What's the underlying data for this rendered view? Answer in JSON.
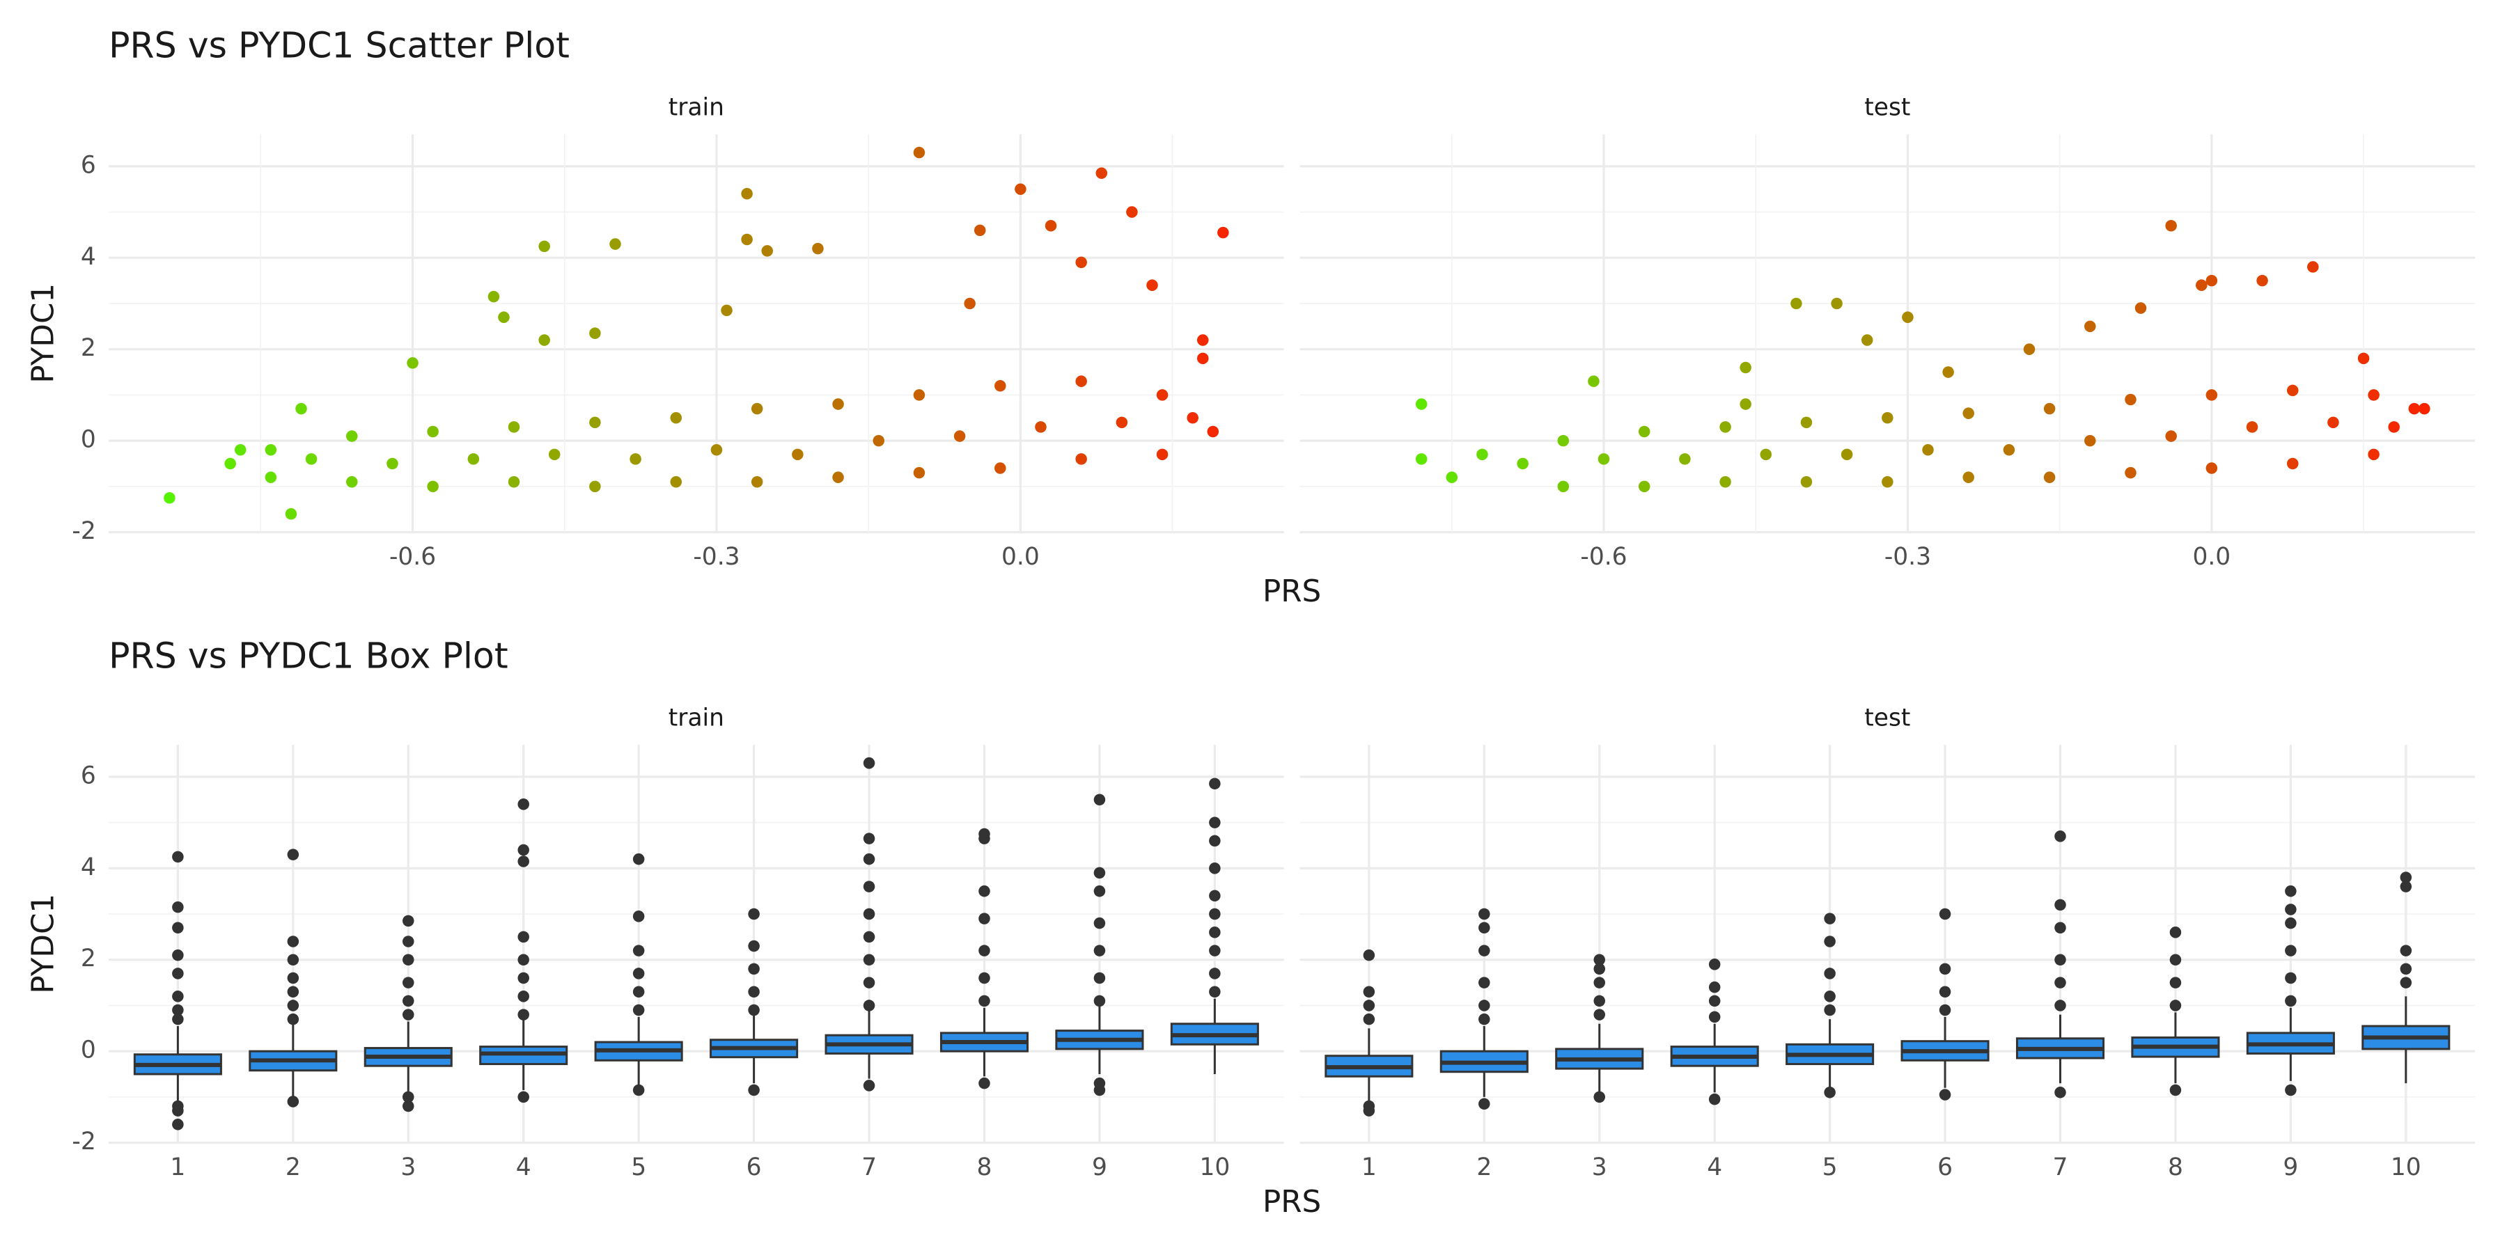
{
  "chart_data": [
    {
      "type": "scatter",
      "title": "PRS vs PYDC1 Scatter Plot",
      "x_label": "PRS",
      "y_label": "PYDC1",
      "xlim": [
        -0.9,
        0.26
      ],
      "xticks": [
        -0.6,
        -0.3,
        {
          "value": 0,
          "label": "0.0"
        }
      ],
      "ylim": [
        -2,
        6.7
      ],
      "yticks": [
        -2,
        0,
        2,
        4,
        6
      ],
      "grid": true,
      "color_low": "#4cff00",
      "color_high": "#ff1a00",
      "panels": [
        {
          "name": "train",
          "x": [
            -0.84,
            -0.77,
            -0.72,
            -0.71,
            -0.6,
            -0.52,
            -0.51,
            -0.47,
            -0.47,
            -0.4,
            -0.42,
            -0.29,
            -0.27,
            -0.27,
            -0.25,
            -0.2,
            -0.1,
            -0.04,
            -0.05,
            0.0,
            0.08,
            0.11,
            0.2,
            0.13,
            0.18,
            0.06,
            0.03,
            0.18,
            -0.78,
            -0.74,
            -0.74,
            -0.7,
            -0.66,
            -0.66,
            -0.62,
            -0.58,
            -0.58,
            -0.54,
            -0.5,
            -0.5,
            -0.46,
            -0.42,
            -0.42,
            -0.38,
            -0.34,
            -0.34,
            -0.3,
            -0.26,
            -0.26,
            -0.22,
            -0.18,
            -0.18,
            -0.14,
            -0.1,
            -0.1,
            -0.06,
            -0.02,
            -0.02,
            0.02,
            0.06,
            0.06,
            0.1,
            0.14,
            0.14,
            0.17,
            0.19
          ],
          "y": [
            -1.25,
            -0.2,
            -1.6,
            0.7,
            1.7,
            3.15,
            2.7,
            4.25,
            2.2,
            4.3,
            2.35,
            2.85,
            5.4,
            4.4,
            4.15,
            4.2,
            6.3,
            4.6,
            3.0,
            5.5,
            5.85,
            5.0,
            4.55,
            3.4,
            2.2,
            3.9,
            4.7,
            1.8,
            -0.5,
            -0.2,
            -0.8,
            -0.4,
            0.1,
            -0.9,
            -0.5,
            0.2,
            -1.0,
            -0.4,
            0.3,
            -0.9,
            -0.3,
            0.4,
            -1.0,
            -0.4,
            0.5,
            -0.9,
            -0.2,
            0.7,
            -0.9,
            -0.3,
            0.8,
            -0.8,
            0.0,
            1.0,
            -0.7,
            0.1,
            1.2,
            -0.6,
            0.3,
            1.3,
            -0.4,
            0.4,
            1.0,
            -0.3,
            0.5,
            0.2
          ]
        },
        {
          "name": "test",
          "x": [
            -0.78,
            -0.61,
            -0.46,
            -0.46,
            -0.41,
            -0.37,
            -0.34,
            -0.3,
            -0.26,
            -0.18,
            -0.12,
            -0.07,
            -0.04,
            -0.01,
            0.0,
            0.05,
            0.1,
            0.15,
            0.2,
            0.21,
            0.18,
            -0.78,
            -0.75,
            -0.72,
            -0.68,
            -0.64,
            -0.64,
            -0.6,
            -0.56,
            -0.56,
            -0.52,
            -0.48,
            -0.48,
            -0.44,
            -0.4,
            -0.4,
            -0.36,
            -0.32,
            -0.32,
            -0.28,
            -0.24,
            -0.24,
            -0.2,
            -0.16,
            -0.16,
            -0.12,
            -0.08,
            -0.08,
            -0.04,
            0.0,
            0.0,
            0.04,
            0.08,
            0.08,
            0.12,
            0.16,
            0.16
          ],
          "y": [
            0.8,
            1.3,
            0.8,
            1.6,
            3.0,
            3.0,
            2.2,
            2.7,
            1.5,
            2.0,
            2.5,
            2.9,
            4.7,
            3.4,
            3.5,
            3.5,
            3.8,
            1.8,
            0.7,
            0.7,
            0.3,
            -0.4,
            -0.8,
            -0.3,
            -0.5,
            0.0,
            -1.0,
            -0.4,
            0.2,
            -1.0,
            -0.4,
            0.3,
            -0.9,
            -0.3,
            0.4,
            -0.9,
            -0.3,
            0.5,
            -0.9,
            -0.2,
            0.6,
            -0.8,
            -0.2,
            0.7,
            -0.8,
            0.0,
            0.9,
            -0.7,
            0.1,
            1.0,
            -0.6,
            0.3,
            1.1,
            -0.5,
            0.4,
            1.0,
            -0.3
          ]
        }
      ]
    },
    {
      "type": "box",
      "title": "PRS vs PYDC1 Box Plot",
      "x_label": "PRS",
      "y_label": "PYDC1",
      "categories": [
        "1",
        "2",
        "3",
        "4",
        "5",
        "6",
        "7",
        "8",
        "9",
        "10"
      ],
      "ylim": [
        -2,
        6.7
      ],
      "yticks": [
        -2,
        0,
        2,
        4,
        6
      ],
      "grid": true,
      "color": "#2b8de6",
      "line_color": "#333333",
      "panels": [
        {
          "name": "train",
          "boxes": [
            {
              "q1": -0.5,
              "median": -0.3,
              "q3": -0.07,
              "whisker_low": -1.1,
              "whisker_high": 0.55,
              "outliers": [
                -1.6,
                -1.3,
                -1.2,
                0.7,
                0.9,
                1.2,
                1.7,
                2.1,
                2.7,
                3.15,
                4.25
              ]
            },
            {
              "q1": -0.42,
              "median": -0.2,
              "q3": 0.0,
              "whisker_low": -1.0,
              "whisker_high": 0.6,
              "outliers": [
                -1.1,
                0.7,
                1.0,
                1.3,
                1.6,
                2.0,
                2.4,
                4.3
              ]
            },
            {
              "q1": -0.32,
              "median": -0.12,
              "q3": 0.07,
              "whisker_low": -0.9,
              "whisker_high": 0.65,
              "outliers": [
                -1.2,
                -1.0,
                0.8,
                1.1,
                1.5,
                2.0,
                2.4,
                2.85
              ]
            },
            {
              "q1": -0.28,
              "median": -0.05,
              "q3": 0.1,
              "whisker_low": -0.85,
              "whisker_high": 0.7,
              "outliers": [
                -1.0,
                0.8,
                1.2,
                1.6,
                2.0,
                2.5,
                4.15,
                4.4,
                5.4
              ]
            },
            {
              "q1": -0.2,
              "median": 0.02,
              "q3": 0.2,
              "whisker_low": -0.8,
              "whisker_high": 0.75,
              "outliers": [
                -0.85,
                0.9,
                1.3,
                1.7,
                2.2,
                2.95,
                4.2
              ]
            },
            {
              "q1": -0.13,
              "median": 0.07,
              "q3": 0.25,
              "whisker_low": -0.7,
              "whisker_high": 0.8,
              "outliers": [
                -0.85,
                0.9,
                1.3,
                1.8,
                2.3,
                3.0
              ]
            },
            {
              "q1": -0.05,
              "median": 0.15,
              "q3": 0.35,
              "whisker_low": -0.6,
              "whisker_high": 0.9,
              "outliers": [
                -0.75,
                1.0,
                1.5,
                2.0,
                2.5,
                3.0,
                3.6,
                4.2,
                4.65,
                6.3
              ]
            },
            {
              "q1": 0.0,
              "median": 0.2,
              "q3": 0.4,
              "whisker_low": -0.55,
              "whisker_high": 0.95,
              "outliers": [
                -0.7,
                1.1,
                1.6,
                2.2,
                2.9,
                3.5,
                4.65,
                4.75
              ]
            },
            {
              "q1": 0.05,
              "median": 0.25,
              "q3": 0.45,
              "whisker_low": -0.5,
              "whisker_high": 1.0,
              "outliers": [
                -0.7,
                -0.85,
                1.1,
                1.6,
                2.2,
                2.8,
                3.5,
                3.9,
                5.5
              ]
            },
            {
              "q1": 0.15,
              "median": 0.35,
              "q3": 0.6,
              "whisker_low": -0.5,
              "whisker_high": 1.15,
              "outliers": [
                1.3,
                1.7,
                2.2,
                2.6,
                3.0,
                3.4,
                4.0,
                4.6,
                5.0,
                5.85
              ]
            }
          ]
        },
        {
          "name": "test",
          "boxes": [
            {
              "q1": -0.55,
              "median": -0.35,
              "q3": -0.1,
              "whisker_low": -1.1,
              "whisker_high": 0.5,
              "outliers": [
                -1.3,
                -1.2,
                0.7,
                1.0,
                1.3,
                2.1
              ]
            },
            {
              "q1": -0.45,
              "median": -0.25,
              "q3": 0.0,
              "whisker_low": -1.0,
              "whisker_high": 0.55,
              "outliers": [
                -1.15,
                0.7,
                1.0,
                1.5,
                2.2,
                2.7,
                3.0
              ]
            },
            {
              "q1": -0.38,
              "median": -0.18,
              "q3": 0.05,
              "whisker_low": -0.95,
              "whisker_high": 0.6,
              "outliers": [
                -1.0,
                0.8,
                1.1,
                1.5,
                1.8,
                2.0
              ]
            },
            {
              "q1": -0.32,
              "median": -0.12,
              "q3": 0.1,
              "whisker_low": -0.9,
              "whisker_high": 0.6,
              "outliers": [
                -1.05,
                0.75,
                1.1,
                1.4,
                1.9
              ]
            },
            {
              "q1": -0.28,
              "median": -0.08,
              "q3": 0.15,
              "whisker_low": -0.85,
              "whisker_high": 0.7,
              "outliers": [
                -0.9,
                0.9,
                1.2,
                1.7,
                2.4,
                2.9
              ]
            },
            {
              "q1": -0.2,
              "median": 0.0,
              "q3": 0.22,
              "whisker_low": -0.8,
              "whisker_high": 0.75,
              "outliers": [
                -0.95,
                0.9,
                1.3,
                1.8,
                3.0
              ]
            },
            {
              "q1": -0.15,
              "median": 0.05,
              "q3": 0.28,
              "whisker_low": -0.7,
              "whisker_high": 0.8,
              "outliers": [
                -0.9,
                1.0,
                1.5,
                2.0,
                2.7,
                3.2,
                4.7
              ]
            },
            {
              "q1": -0.12,
              "median": 0.1,
              "q3": 0.3,
              "whisker_low": -0.7,
              "whisker_high": 0.85,
              "outliers": [
                -0.85,
                1.0,
                1.5,
                2.0,
                2.6
              ]
            },
            {
              "q1": -0.05,
              "median": 0.15,
              "q3": 0.4,
              "whisker_low": -0.65,
              "whisker_high": 0.95,
              "outliers": [
                -0.85,
                1.1,
                1.6,
                2.2,
                2.8,
                3.1,
                3.5
              ]
            },
            {
              "q1": 0.05,
              "median": 0.3,
              "q3": 0.55,
              "whisker_low": -0.7,
              "whisker_high": 1.2,
              "outliers": [
                1.5,
                1.8,
                2.2,
                3.6,
                3.8
              ]
            }
          ]
        }
      ]
    }
  ]
}
